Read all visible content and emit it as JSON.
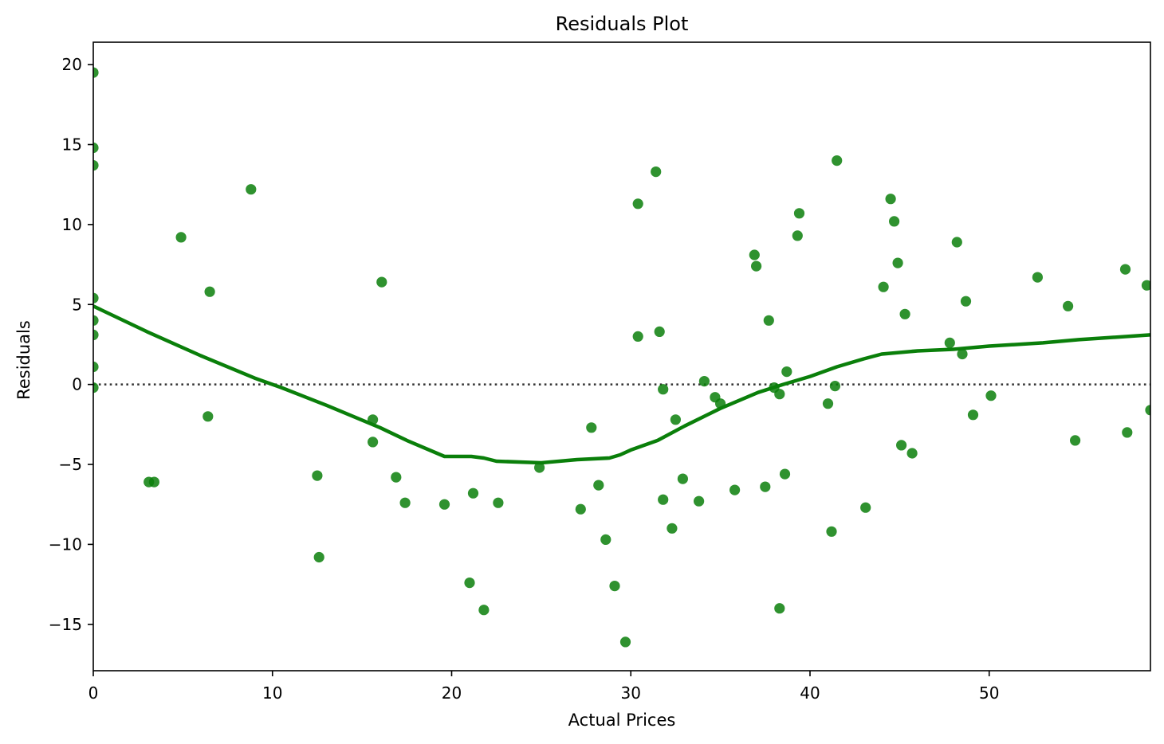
{
  "chart_data": {
    "type": "scatter",
    "title": "Residuals Plot",
    "xlabel": "Actual Prices",
    "ylabel": "Residuals",
    "xlim": [
      0,
      59
    ],
    "ylim": [
      -17.9,
      21.4
    ],
    "xticks": [
      0,
      10,
      20,
      30,
      40,
      50
    ],
    "xtick_labels": [
      "0",
      "10",
      "20",
      "30",
      "40",
      "50"
    ],
    "yticks": [
      -15,
      -10,
      -5,
      0,
      5,
      10,
      15,
      20
    ],
    "ytick_labels": [
      "−15",
      "−10",
      "−5",
      "0",
      "5",
      "10",
      "15",
      "20"
    ],
    "grid": false,
    "reference_line": {
      "y": 0,
      "style": "dotted",
      "color": "#333333"
    },
    "series": [
      {
        "kind": "points",
        "color": "#0a7f0a",
        "points": [
          [
            0,
            19.5
          ],
          [
            0,
            14.8
          ],
          [
            0,
            13.7
          ],
          [
            0,
            5.4
          ],
          [
            0,
            4.0
          ],
          [
            0,
            3.1
          ],
          [
            0,
            1.1
          ],
          [
            0,
            -0.2
          ],
          [
            3.1,
            -6.1
          ],
          [
            3.4,
            -6.1
          ],
          [
            4.9,
            9.2
          ],
          [
            6.4,
            -2.0
          ],
          [
            6.5,
            5.8
          ],
          [
            8.8,
            12.2
          ],
          [
            12.5,
            -5.7
          ],
          [
            12.6,
            -10.8
          ],
          [
            15.6,
            -2.2
          ],
          [
            15.6,
            -3.6
          ],
          [
            16.1,
            6.4
          ],
          [
            16.9,
            -5.8
          ],
          [
            17.4,
            -7.4
          ],
          [
            19.6,
            -7.5
          ],
          [
            21.0,
            -12.4
          ],
          [
            21.2,
            -6.8
          ],
          [
            21.8,
            -14.1
          ],
          [
            22.6,
            -7.4
          ],
          [
            24.9,
            -5.2
          ],
          [
            27.2,
            -7.8
          ],
          [
            27.8,
            -2.7
          ],
          [
            28.2,
            -6.3
          ],
          [
            28.6,
            -9.7
          ],
          [
            29.1,
            -12.6
          ],
          [
            29.7,
            -16.1
          ],
          [
            30.4,
            11.3
          ],
          [
            30.4,
            3.0
          ],
          [
            31.4,
            13.3
          ],
          [
            31.6,
            3.3
          ],
          [
            31.8,
            -0.3
          ],
          [
            31.8,
            -7.2
          ],
          [
            32.3,
            -9.0
          ],
          [
            32.5,
            -2.2
          ],
          [
            32.9,
            -5.9
          ],
          [
            33.8,
            -7.3
          ],
          [
            34.1,
            0.2
          ],
          [
            34.7,
            -0.8
          ],
          [
            35.0,
            -1.2
          ],
          [
            35.8,
            -6.6
          ],
          [
            36.9,
            8.1
          ],
          [
            37.0,
            7.4
          ],
          [
            37.5,
            -6.4
          ],
          [
            37.7,
            4.0
          ],
          [
            38.0,
            -0.2
          ],
          [
            38.3,
            -0.6
          ],
          [
            38.3,
            -14.0
          ],
          [
            38.6,
            -5.6
          ],
          [
            38.7,
            0.8
          ],
          [
            39.3,
            9.3
          ],
          [
            39.4,
            10.7
          ],
          [
            41.0,
            -1.2
          ],
          [
            41.2,
            -9.2
          ],
          [
            41.4,
            -0.1
          ],
          [
            41.5,
            14.0
          ],
          [
            43.1,
            -7.7
          ],
          [
            44.1,
            6.1
          ],
          [
            44.5,
            11.6
          ],
          [
            44.7,
            10.2
          ],
          [
            44.9,
            7.6
          ],
          [
            45.1,
            -3.8
          ],
          [
            45.3,
            4.4
          ],
          [
            45.7,
            -4.3
          ],
          [
            47.8,
            2.6
          ],
          [
            48.2,
            8.9
          ],
          [
            48.5,
            1.9
          ],
          [
            48.7,
            5.2
          ],
          [
            49.1,
            -1.9
          ],
          [
            50.1,
            -0.7
          ],
          [
            52.7,
            6.7
          ],
          [
            54.4,
            4.9
          ],
          [
            54.8,
            -3.5
          ],
          [
            57.6,
            7.2
          ],
          [
            57.7,
            -3.0
          ],
          [
            58.8,
            6.2
          ],
          [
            59.0,
            -1.6
          ]
        ]
      },
      {
        "kind": "lowess-line",
        "color": "#0a7f0a",
        "points": [
          [
            0,
            4.9
          ],
          [
            3,
            3.3
          ],
          [
            6,
            1.8
          ],
          [
            9,
            0.4
          ],
          [
            10.5,
            -0.2
          ],
          [
            13,
            -1.3
          ],
          [
            16,
            -2.7
          ],
          [
            17.5,
            -3.5
          ],
          [
            19.6,
            -4.5
          ],
          [
            21.1,
            -4.5
          ],
          [
            21.8,
            -4.6
          ],
          [
            22.5,
            -4.8
          ],
          [
            25,
            -4.9
          ],
          [
            27,
            -4.7
          ],
          [
            28.8,
            -4.6
          ],
          [
            29.4,
            -4.4
          ],
          [
            30,
            -4.1
          ],
          [
            31.5,
            -3.5
          ],
          [
            33,
            -2.6
          ],
          [
            35,
            -1.5
          ],
          [
            37.1,
            -0.5
          ],
          [
            38.5,
            0
          ],
          [
            40,
            0.5
          ],
          [
            41.5,
            1.1
          ],
          [
            43,
            1.6
          ],
          [
            44,
            1.9
          ],
          [
            46,
            2.1
          ],
          [
            48,
            2.2
          ],
          [
            50,
            2.4
          ],
          [
            53,
            2.6
          ],
          [
            55,
            2.8
          ],
          [
            59,
            3.1
          ]
        ]
      }
    ]
  }
}
